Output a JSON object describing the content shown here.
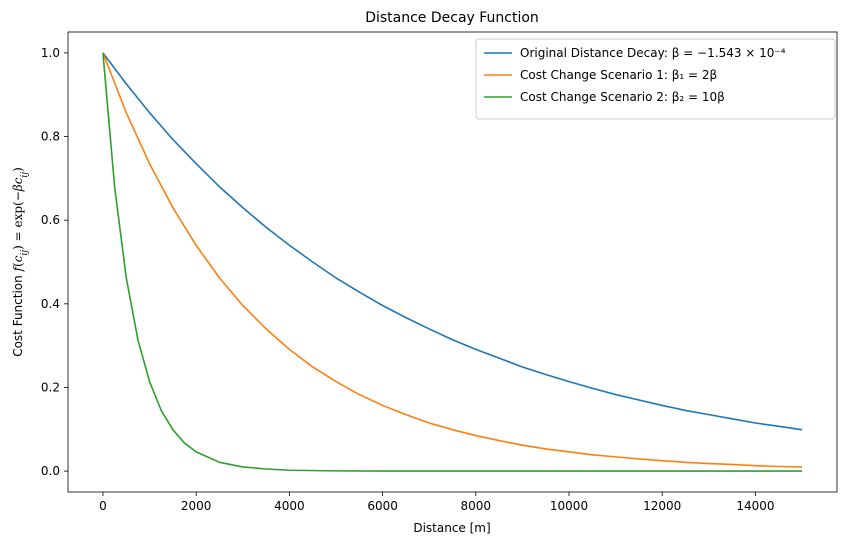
{
  "chart_data": {
    "type": "line",
    "title": "Distance Decay Function",
    "xlabel": "Distance [m]",
    "ylabel": "Cost Function f(cij) = exp(−βcij)",
    "xlim": [
      -750,
      15750
    ],
    "ylim": [
      -0.05,
      1.05
    ],
    "x_ticks": [
      0,
      2000,
      4000,
      6000,
      8000,
      10000,
      12000,
      14000
    ],
    "y_ticks": [
      0.0,
      0.2,
      0.4,
      0.6,
      0.8,
      1.0
    ],
    "x_tick_labels": [
      "0",
      "2000",
      "4000",
      "6000",
      "8000",
      "10000",
      "12000",
      "14000"
    ],
    "y_tick_labels": [
      "0.0",
      "0.2",
      "0.4",
      "0.6",
      "0.8",
      "1.0"
    ],
    "grid": false,
    "legend_position": "top-right",
    "series": [
      {
        "name": "Original Distance Decay: β = −1.543 × 10⁻⁴",
        "color": "#1f77b4",
        "x": [
          0,
          500,
          1000,
          1500,
          2000,
          2500,
          3000,
          3500,
          4000,
          4500,
          5000,
          5500,
          6000,
          6500,
          7000,
          7500,
          8000,
          8500,
          9000,
          9500,
          10000,
          10500,
          11000,
          11500,
          12000,
          12500,
          13000,
          13500,
          14000,
          14500,
          15000
        ],
        "y": [
          1.0,
          0.926,
          0.857,
          0.793,
          0.735,
          0.68,
          0.63,
          0.583,
          0.54,
          0.5,
          0.462,
          0.428,
          0.396,
          0.367,
          0.34,
          0.314,
          0.291,
          0.27,
          0.249,
          0.231,
          0.214,
          0.198,
          0.183,
          0.17,
          0.157,
          0.145,
          0.135,
          0.125,
          0.115,
          0.107,
          0.099
        ]
      },
      {
        "name": "Cost Change Scenario 1: β₁ = 2β",
        "color": "#ff7f0e",
        "x": [
          0,
          500,
          1000,
          1500,
          2000,
          2500,
          3000,
          3500,
          4000,
          4500,
          5000,
          5500,
          6000,
          6500,
          7000,
          7500,
          8000,
          8500,
          9000,
          9500,
          10000,
          10500,
          11000,
          11500,
          12000,
          12500,
          13000,
          13500,
          14000,
          14500,
          15000
        ],
        "y": [
          1.0,
          0.857,
          0.735,
          0.63,
          0.54,
          0.462,
          0.396,
          0.34,
          0.291,
          0.249,
          0.214,
          0.183,
          0.157,
          0.135,
          0.115,
          0.099,
          0.085,
          0.073,
          0.062,
          0.053,
          0.046,
          0.039,
          0.034,
          0.029,
          0.025,
          0.021,
          0.018,
          0.016,
          0.013,
          0.011,
          0.01
        ]
      },
      {
        "name": "Cost Change Scenario 2: β₂ = 10β",
        "color": "#2ca02c",
        "x": [
          0,
          250,
          500,
          750,
          1000,
          1250,
          1500,
          1750,
          2000,
          2500,
          3000,
          3500,
          4000,
          5000,
          6000,
          8000,
          10000,
          12000,
          15000
        ],
        "y": [
          1.0,
          0.68,
          0.462,
          0.314,
          0.214,
          0.145,
          0.099,
          0.067,
          0.046,
          0.021,
          0.01,
          0.005,
          0.002,
          0.0005,
          0.0001,
          0.0,
          0.0,
          0.0,
          0.0
        ]
      }
    ]
  }
}
